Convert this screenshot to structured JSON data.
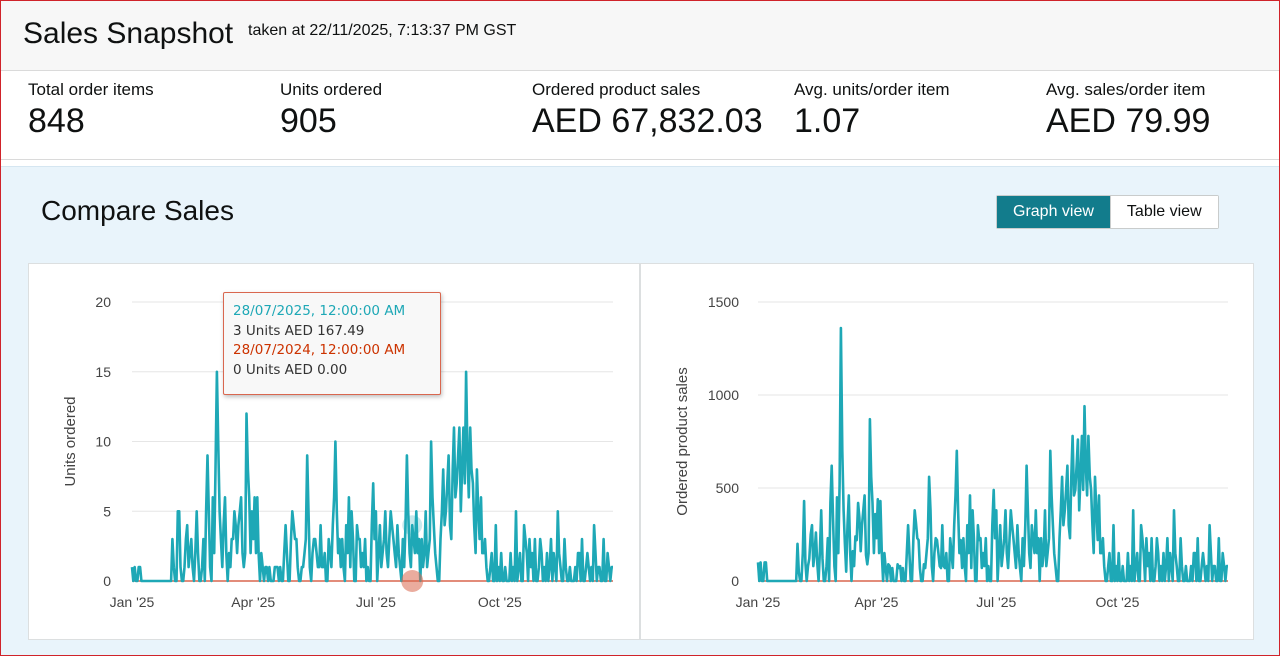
{
  "header": {
    "title": "Sales Snapshot",
    "taken": "taken at 22/11/2025, 7:13:37 PM GST"
  },
  "metrics": [
    {
      "label": "Total order items",
      "value": "848"
    },
    {
      "label": "Units ordered",
      "value": "905"
    },
    {
      "label": "Ordered product sales",
      "value": "AED 67,832.03"
    },
    {
      "label": "Avg. units/order item",
      "value": "1.07"
    },
    {
      "label": "Avg. sales/order item",
      "value": "AED 79.99"
    }
  ],
  "compare": {
    "title": "Compare Sales",
    "graph_view_label": "Graph view",
    "table_view_label": "Table view"
  },
  "tooltip": {
    "current_date": "28/07/2025, 12:00:00 AM",
    "current_values": "3 Units AED 167.49",
    "previous_date": "28/07/2024, 12:00:00 AM",
    "previous_values": "0 Units AED 0.00"
  },
  "colors": {
    "current_series": "#1ea8b6",
    "previous_series": "#d9674f",
    "active_toggle": "#127c8c"
  },
  "chart_data": [
    {
      "type": "line",
      "ylabel": "Units ordered",
      "ylim": [
        0,
        20
      ],
      "yticks": [
        "0",
        "5",
        "10",
        "15",
        "20"
      ],
      "xticks": [
        "Jan '25",
        "Apr '25",
        "Jul '25",
        "Oct '25"
      ],
      "series": [
        {
          "name": "current",
          "x_start": "2025-01-01",
          "values": [
            1,
            0,
            1,
            0,
            0,
            1,
            1,
            0,
            0,
            0,
            0,
            0,
            0,
            0,
            0,
            0,
            0,
            0,
            0,
            0,
            0,
            0,
            0,
            0,
            0,
            0,
            0,
            0,
            0,
            0,
            3,
            1,
            0,
            0,
            5,
            5,
            1,
            0,
            0,
            1,
            3,
            4,
            1,
            2,
            3,
            1,
            0,
            2,
            5,
            2,
            0,
            0,
            1,
            3,
            0,
            5,
            9,
            5,
            1,
            0,
            6,
            2,
            8,
            15,
            10,
            5,
            3,
            1,
            4,
            6,
            2,
            0,
            2,
            1,
            3,
            3,
            5,
            4,
            2,
            4,
            5,
            6,
            2,
            1,
            2,
            12,
            8,
            6,
            2,
            5,
            3,
            6,
            2,
            6,
            2,
            0,
            2,
            1,
            0,
            1,
            1,
            0,
            1,
            0,
            0,
            0,
            1,
            1,
            1,
            0,
            1,
            0,
            0,
            2,
            4,
            2,
            0,
            0,
            3,
            5,
            4,
            3,
            3,
            1,
            0,
            0,
            1,
            1,
            2,
            3,
            9,
            5,
            1,
            0,
            2,
            3,
            3,
            2,
            1,
            1,
            4,
            1,
            1,
            2,
            0,
            0,
            3,
            2,
            1,
            4,
            6,
            10,
            5,
            2,
            3,
            1,
            3,
            1,
            0,
            4,
            2,
            6,
            1,
            5,
            3,
            0,
            0,
            4,
            3,
            3,
            1,
            2,
            1,
            3,
            0,
            1,
            0,
            0,
            4,
            7,
            3,
            5,
            0,
            2,
            4,
            1,
            2,
            3,
            5,
            2,
            1,
            3,
            5,
            4,
            3,
            2,
            1,
            4,
            2,
            1,
            0,
            3,
            1,
            4,
            9,
            5,
            2,
            1,
            4,
            3,
            2,
            5,
            2,
            3,
            0,
            3,
            1,
            2,
            5,
            1,
            2,
            3,
            10,
            6,
            4,
            2,
            1,
            0,
            0,
            3,
            5,
            8,
            4,
            5,
            7,
            9,
            4,
            3,
            8,
            11,
            6,
            7,
            9,
            11,
            5,
            8,
            11,
            7,
            15,
            9,
            6,
            11,
            8,
            7,
            4,
            2,
            8,
            5,
            3,
            6,
            2,
            2,
            3,
            1,
            0,
            0,
            1,
            2,
            0,
            0,
            4,
            0,
            1,
            0,
            2,
            0,
            0,
            1,
            0,
            0,
            0,
            2,
            0,
            1,
            0,
            5,
            0,
            1,
            2,
            0,
            0,
            4,
            3,
            2,
            0,
            3,
            1,
            2,
            0,
            3,
            0,
            0,
            1,
            3,
            2,
            0,
            1,
            0,
            2,
            0,
            1,
            3,
            0,
            2,
            1,
            0,
            5,
            2,
            1,
            0,
            0,
            3,
            1,
            0,
            0,
            1,
            0,
            0,
            0,
            1,
            0,
            2,
            2,
            0,
            3,
            0,
            0,
            1,
            2,
            1,
            0,
            1,
            0,
            4,
            2,
            0,
            1,
            1,
            0,
            0,
            3,
            0,
            0,
            2,
            1,
            0,
            1,
            1
          ]
        },
        {
          "name": "previous",
          "constant": 0
        }
      ]
    },
    {
      "type": "line",
      "ylabel": "Ordered product sales",
      "ylim": [
        0,
        1500
      ],
      "yticks": [
        "0",
        "500",
        "1000",
        "1500"
      ],
      "xticks": [
        "Jan '25",
        "Apr '25",
        "Jul '25",
        "Oct '25"
      ],
      "series": [
        {
          "name": "current",
          "x_start": "2025-01-01",
          "values": [
            100,
            0,
            100,
            0,
            0,
            100,
            100,
            0,
            0,
            0,
            0,
            0,
            0,
            0,
            0,
            0,
            0,
            0,
            0,
            0,
            0,
            0,
            0,
            0,
            0,
            0,
            0,
            0,
            0,
            0,
            200,
            50,
            0,
            0,
            150,
            430,
            100,
            0,
            80,
            120,
            250,
            300,
            80,
            150,
            260,
            100,
            0,
            160,
            380,
            120,
            0,
            0,
            80,
            230,
            0,
            420,
            620,
            340,
            80,
            0,
            450,
            150,
            520,
            1360,
            700,
            380,
            200,
            50,
            300,
            460,
            150,
            0,
            160,
            80,
            240,
            220,
            420,
            340,
            160,
            300,
            380,
            460,
            140,
            90,
            150,
            870,
            560,
            420,
            150,
            360,
            230,
            440,
            150,
            430,
            150,
            0,
            150,
            70,
            0,
            90,
            80,
            0,
            70,
            0,
            0,
            0,
            90,
            70,
            80,
            0,
            70,
            0,
            0,
            150,
            300,
            150,
            0,
            0,
            230,
            380,
            310,
            230,
            220,
            70,
            0,
            0,
            90,
            70,
            150,
            230,
            560,
            380,
            80,
            0,
            150,
            230,
            220,
            150,
            80,
            70,
            300,
            80,
            70,
            150,
            0,
            0,
            230,
            150,
            70,
            300,
            460,
            700,
            380,
            150,
            220,
            70,
            230,
            80,
            0,
            300,
            150,
            460,
            70,
            380,
            230,
            0,
            0,
            300,
            220,
            230,
            70,
            150,
            80,
            230,
            0,
            80,
            0,
            0,
            300,
            490,
            230,
            380,
            0,
            150,
            300,
            80,
            150,
            230,
            380,
            150,
            70,
            220,
            380,
            300,
            230,
            150,
            70,
            300,
            150,
            70,
            0,
            230,
            80,
            300,
            620,
            380,
            150,
            70,
            300,
            220,
            150,
            380,
            150,
            230,
            0,
            230,
            80,
            150,
            380,
            80,
            150,
            230,
            700,
            460,
            300,
            150,
            80,
            0,
            0,
            230,
            380,
            560,
            300,
            380,
            490,
            620,
            300,
            230,
            560,
            780,
            460,
            490,
            620,
            760,
            380,
            560,
            780,
            490,
            940,
            620,
            460,
            780,
            560,
            490,
            300,
            150,
            560,
            380,
            220,
            460,
            150,
            150,
            230,
            80,
            0,
            0,
            80,
            150,
            0,
            0,
            300,
            0,
            80,
            0,
            150,
            0,
            0,
            80,
            0,
            0,
            0,
            150,
            0,
            80,
            0,
            380,
            0,
            80,
            150,
            0,
            0,
            300,
            230,
            150,
            0,
            230,
            80,
            150,
            0,
            230,
            0,
            0,
            80,
            230,
            150,
            0,
            80,
            0,
            150,
            0,
            80,
            230,
            0,
            150,
            80,
            0,
            380,
            150,
            80,
            0,
            0,
            230,
            80,
            0,
            0,
            80,
            0,
            0,
            0,
            80,
            0,
            150,
            150,
            0,
            230,
            0,
            0,
            80,
            150,
            80,
            0,
            80,
            0,
            300,
            150,
            0,
            80,
            80,
            0,
            0,
            230,
            0,
            0,
            150,
            80,
            0,
            80,
            80
          ]
        },
        {
          "name": "previous",
          "constant": 0
        }
      ]
    }
  ]
}
